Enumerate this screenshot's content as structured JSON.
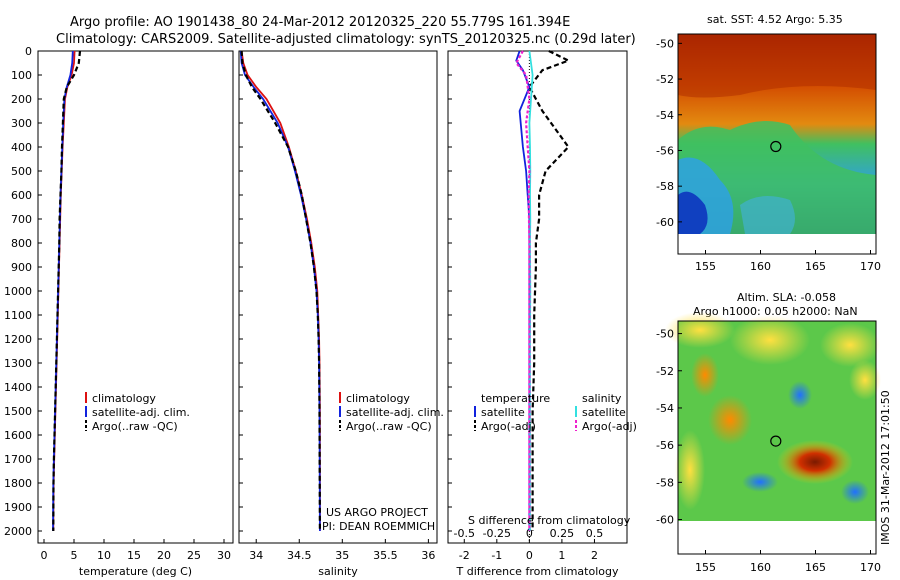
{
  "header": {
    "line1": "Argo profile: AO 1901438_80 24-Mar-2012 20120325_220 55.779S 161.394E",
    "line2": "Climatology: CARS2009. Satellite-adjusted climatology: synTS_20120325.nc (0.29d later)"
  },
  "footer": {
    "project": "US ARGO PROJECT",
    "pi": "PI: DEAN ROEMMICH",
    "stamp": "IMOS 31-Mar-2012 17:01:50"
  },
  "colors": {
    "climatology": "#dd1111",
    "satellite_adj": "#1122dd",
    "argo": "#000000",
    "sal_satellite": "#33e0e0",
    "sal_argo": "#ee22cc"
  },
  "chart_data": [
    {
      "type": "line",
      "xlabel": "temperature (deg C)",
      "ylabel": "",
      "xlim": [
        -1,
        31.5
      ],
      "ylim": [
        2050,
        0
      ],
      "xticks": [
        0,
        5,
        10,
        15,
        20,
        25,
        30
      ],
      "yticks": [
        0,
        100,
        200,
        300,
        400,
        500,
        600,
        700,
        800,
        900,
        1000,
        1100,
        1200,
        1300,
        1400,
        1500,
        1600,
        1700,
        1800,
        1900,
        2000
      ],
      "legend": {
        "position": "center-right",
        "entries": [
          "climatology",
          "satellite-adj. clim.",
          "Argo(..raw -QC)"
        ]
      },
      "series": [
        {
          "name": "climatology",
          "x": [
            5.1,
            5.0,
            4.6,
            3.9,
            3.5,
            3.3,
            3.1,
            2.95,
            2.8,
            2.7,
            2.6,
            2.5,
            2.4,
            2.3,
            2.2,
            2.1,
            2.0,
            1.9,
            1.8,
            1.7,
            1.6,
            1.55
          ],
          "y": [
            0,
            50,
            100,
            150,
            200,
            300,
            400,
            500,
            600,
            700,
            800,
            900,
            1000,
            1100,
            1200,
            1300,
            1400,
            1500,
            1600,
            1700,
            1800,
            2000
          ]
        },
        {
          "name": "satellite-adj. clim.",
          "x": [
            4.8,
            4.7,
            4.4,
            3.8,
            3.4,
            3.2,
            3.05,
            2.9,
            2.75,
            2.65,
            2.55,
            2.45,
            2.35,
            2.25,
            2.15,
            2.05,
            1.95,
            1.85,
            1.75,
            1.65,
            1.55,
            1.5
          ],
          "y": [
            0,
            50,
            100,
            150,
            200,
            300,
            400,
            500,
            600,
            700,
            800,
            900,
            1000,
            1100,
            1200,
            1300,
            1400,
            1500,
            1600,
            1700,
            1800,
            2000
          ]
        },
        {
          "name": "Argo(..raw -QC)",
          "x": [
            6.0,
            5.8,
            5.0,
            3.8,
            3.3,
            3.15,
            3.0,
            2.9,
            2.75,
            2.6,
            2.55,
            2.45,
            2.35,
            2.25,
            2.15,
            2.05,
            1.95,
            1.85,
            1.75,
            1.65,
            1.58,
            1.55
          ],
          "y": [
            0,
            50,
            100,
            150,
            200,
            300,
            400,
            500,
            600,
            700,
            800,
            900,
            1000,
            1100,
            1200,
            1300,
            1400,
            1500,
            1600,
            1700,
            1800,
            2000
          ]
        }
      ]
    },
    {
      "type": "line",
      "xlabel": "salinity",
      "ylabel": "",
      "xlim": [
        33.8,
        36.1
      ],
      "ylim": [
        2050,
        0
      ],
      "xticks": [
        34,
        34.5,
        35,
        35.5,
        36
      ],
      "legend": {
        "position": "center-right",
        "entries": [
          "climatology",
          "satellite-adj. clim.",
          "Argo(..raw -QC)"
        ]
      },
      "series": [
        {
          "name": "climatology",
          "x": [
            33.83,
            33.85,
            33.9,
            34.0,
            34.12,
            34.28,
            34.38,
            34.46,
            34.53,
            34.59,
            34.64,
            34.68,
            34.71,
            34.72,
            34.73,
            34.735,
            34.74,
            34.74
          ],
          "y": [
            0,
            50,
            100,
            150,
            200,
            300,
            400,
            500,
            600,
            700,
            800,
            900,
            1000,
            1100,
            1200,
            1300,
            1500,
            2000
          ]
        },
        {
          "name": "satellite-adj. clim.",
          "x": [
            33.82,
            33.83,
            33.87,
            33.97,
            34.08,
            34.25,
            34.37,
            34.45,
            34.52,
            34.58,
            34.63,
            34.67,
            34.7,
            34.715,
            34.725,
            34.73,
            34.735,
            34.74
          ],
          "y": [
            0,
            50,
            100,
            150,
            200,
            300,
            400,
            500,
            600,
            700,
            800,
            900,
            1000,
            1100,
            1200,
            1300,
            1500,
            2000
          ]
        },
        {
          "name": "Argo(..raw -QC)",
          "x": [
            33.83,
            33.84,
            33.88,
            33.95,
            34.05,
            34.22,
            34.37,
            34.46,
            34.53,
            34.58,
            34.63,
            34.67,
            34.7,
            34.715,
            34.725,
            34.73,
            34.735,
            34.74
          ],
          "y": [
            0,
            50,
            100,
            150,
            200,
            300,
            400,
            500,
            600,
            700,
            800,
            900,
            1000,
            1100,
            1200,
            1300,
            1500,
            2000
          ]
        }
      ]
    },
    {
      "type": "line",
      "xlabel": "T difference from climatology",
      "title": "S difference from climatology",
      "xlim": [
        -2.5,
        3.0
      ],
      "ylim": [
        2050,
        0
      ],
      "xticks": [
        -2,
        -1,
        0,
        1,
        2
      ],
      "sticks_top": [
        "-0.5",
        "-0.25",
        "0",
        "0.25",
        "0.5"
      ],
      "legend": {
        "position": "center",
        "entries": [
          "temperature",
          "satellite",
          "Argo(-adj)",
          "salinity",
          "satellite",
          "Argo(-adj)"
        ]
      },
      "series": [
        {
          "name": "temperature satellite",
          "x": [
            -0.3,
            -0.4,
            -0.2,
            0.0,
            -0.3,
            -0.2,
            -0.1,
            -0.05,
            0.0,
            0.0,
            0.0,
            0.0,
            0.0,
            0.0,
            0.0,
            0.0
          ],
          "y": [
            0,
            40,
            80,
            150,
            250,
            400,
            500,
            600,
            700,
            800,
            900,
            1100,
            1300,
            1500,
            1800,
            2000
          ]
        },
        {
          "name": "temperature Argo(-adj)",
          "x": [
            0.6,
            1.2,
            0.4,
            0.0,
            0.4,
            1.2,
            0.5,
            0.3,
            0.3,
            0.2,
            0.2,
            0.15,
            0.15,
            0.1,
            0.1,
            0.1
          ],
          "y": [
            0,
            40,
            80,
            150,
            250,
            400,
            500,
            600,
            700,
            800,
            900,
            1100,
            1300,
            1500,
            1800,
            2000
          ]
        },
        {
          "name": "salinity satellite",
          "x": [
            0.0,
            0.05,
            0.1,
            0.05,
            0.0,
            0.02,
            0.03,
            0.02,
            0.03,
            0.02,
            0.03,
            0.02,
            0.02,
            0.02,
            0.02
          ],
          "y": [
            0,
            50,
            100,
            200,
            300,
            400,
            500,
            600,
            700,
            800,
            1000,
            1200,
            1500,
            1800,
            2000
          ]
        },
        {
          "name": "salinity Argo(-adj)",
          "x": [
            -0.2,
            -0.4,
            -0.1,
            0.0,
            -0.1,
            -0.05,
            0.0,
            -0.02,
            -0.01,
            0.0,
            0.0,
            0.0,
            0.0,
            0.0
          ],
          "y": [
            0,
            50,
            100,
            200,
            300,
            400,
            500,
            600,
            700,
            800,
            1000,
            1300,
            1600,
            2000
          ]
        }
      ]
    },
    {
      "type": "heatmap",
      "title": "sat. SST: 4.52 Argo: 5.35",
      "xticks": [
        "155",
        "160",
        "165",
        "170"
      ],
      "yticks": [
        "-50",
        "-52",
        "-54",
        "-56",
        "-58",
        "-60"
      ],
      "xlim": [
        152.5,
        170.5
      ],
      "ylim": [
        -61.8,
        -49.7
      ],
      "marker": {
        "x": 161.39,
        "y": -55.78
      }
    },
    {
      "type": "heatmap",
      "title": "Altim. SLA: -0.058",
      "subtitle": "Argo h1000: 0.05 h2000: NaN",
      "xticks": [
        "155",
        "160",
        "165",
        "170"
      ],
      "yticks": [
        "-50",
        "-52",
        "-54",
        "-56",
        "-58",
        "-60"
      ],
      "xlim": [
        152.5,
        170.5
      ],
      "ylim": [
        -61.8,
        -49.7
      ],
      "marker": {
        "x": 161.39,
        "y": -55.78
      }
    }
  ]
}
